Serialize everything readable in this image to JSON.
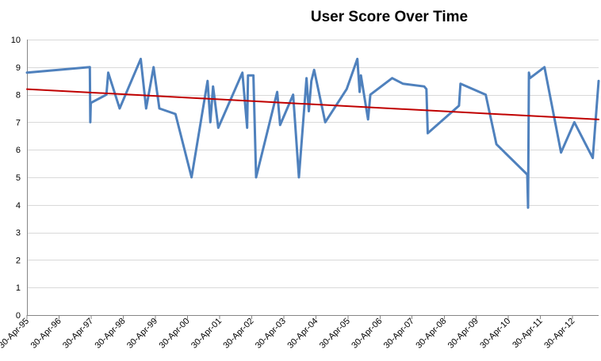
{
  "chart_data": {
    "type": "line",
    "title": "User Score Over Time",
    "xlabel": "",
    "ylabel": "",
    "ylim": [
      0,
      10
    ],
    "yticks": [
      0,
      1,
      2,
      3,
      4,
      5,
      6,
      7,
      8,
      9,
      10
    ],
    "xlim": [
      "1995-04-30",
      "2013-02-20"
    ],
    "xtick_dates": [
      "1995-04-30",
      "1996-04-30",
      "1997-04-30",
      "1998-04-30",
      "1999-04-30",
      "2000-04-30",
      "2001-04-30",
      "2002-04-30",
      "2003-04-30",
      "2004-04-30",
      "2005-04-30",
      "2006-04-30",
      "2007-04-30",
      "2008-04-30",
      "2009-04-30",
      "2010-04-30",
      "2011-04-30",
      "2012-04-30"
    ],
    "xtick_labels": [
      "30-Apr-95",
      "30-Apr-96",
      "30-Apr-97",
      "30-Apr-98",
      "30-Apr-99",
      "30-Apr-00",
      "30-Apr-01",
      "30-Apr-02",
      "30-Apr-03",
      "30-Apr-04",
      "30-Apr-05",
      "30-Apr-06",
      "30-Apr-07",
      "30-Apr-08",
      "30-Apr-09",
      "30-Apr-10",
      "30-Apr-11",
      "30-Apr-12"
    ],
    "grid": true,
    "legend": "none",
    "series": [
      {
        "color": "#4f81bd",
        "points": [
          [
            "1995-04-30",
            8.8
          ],
          [
            "1997-04-15",
            9.0
          ],
          [
            "1997-04-20",
            7.0
          ],
          [
            "1997-04-25",
            7.7
          ],
          [
            "1997-10-20",
            8.0
          ],
          [
            "1997-11-10",
            8.8
          ],
          [
            "1998-03-20",
            7.5
          ],
          [
            "1998-11-15",
            9.3
          ],
          [
            "1999-01-15",
            7.5
          ],
          [
            "1999-04-10",
            9.0
          ],
          [
            "1999-06-15",
            7.5
          ],
          [
            "1999-12-15",
            7.3
          ],
          [
            "2000-06-15",
            5.0
          ],
          [
            "2000-12-15",
            8.5
          ],
          [
            "2001-01-15",
            7.0
          ],
          [
            "2001-02-15",
            8.3
          ],
          [
            "2001-04-15",
            6.8
          ],
          [
            "2002-01-15",
            8.8
          ],
          [
            "2002-03-10",
            6.8
          ],
          [
            "2002-03-20",
            8.7
          ],
          [
            "2002-05-20",
            8.7
          ],
          [
            "2002-06-20",
            5.0
          ],
          [
            "2003-02-15",
            8.1
          ],
          [
            "2003-03-20",
            6.9
          ],
          [
            "2003-08-15",
            8.0
          ],
          [
            "2003-10-20",
            5.0
          ],
          [
            "2004-01-15",
            8.6
          ],
          [
            "2004-02-10",
            7.4
          ],
          [
            "2004-03-10",
            8.5
          ],
          [
            "2004-04-10",
            8.9
          ],
          [
            "2004-08-15",
            7.0
          ],
          [
            "2005-04-15",
            8.2
          ],
          [
            "2005-08-15",
            9.3
          ],
          [
            "2005-09-10",
            8.1
          ],
          [
            "2005-09-25",
            8.7
          ],
          [
            "2005-12-15",
            7.1
          ],
          [
            "2006-01-10",
            8.0
          ],
          [
            "2006-09-15",
            8.6
          ],
          [
            "2007-01-15",
            8.4
          ],
          [
            "2007-09-15",
            8.3
          ],
          [
            "2007-10-10",
            8.2
          ],
          [
            "2007-10-25",
            6.6
          ],
          [
            "2008-10-15",
            7.6
          ],
          [
            "2008-11-01",
            8.4
          ],
          [
            "2009-08-15",
            8.0
          ],
          [
            "2009-12-15",
            6.2
          ],
          [
            "2010-12-01",
            5.1
          ],
          [
            "2010-12-10",
            3.9
          ],
          [
            "2010-12-20",
            8.8
          ],
          [
            "2011-01-01",
            8.6
          ],
          [
            "2011-06-15",
            9.0
          ],
          [
            "2011-12-20",
            5.9
          ],
          [
            "2012-05-20",
            7.0
          ],
          [
            "2012-12-15",
            5.7
          ],
          [
            "2013-02-20",
            8.5
          ]
        ]
      },
      {
        "color": "#c00000",
        "points": [
          [
            "1995-04-30",
            8.2
          ],
          [
            "2013-02-20",
            7.1
          ]
        ]
      }
    ]
  }
}
